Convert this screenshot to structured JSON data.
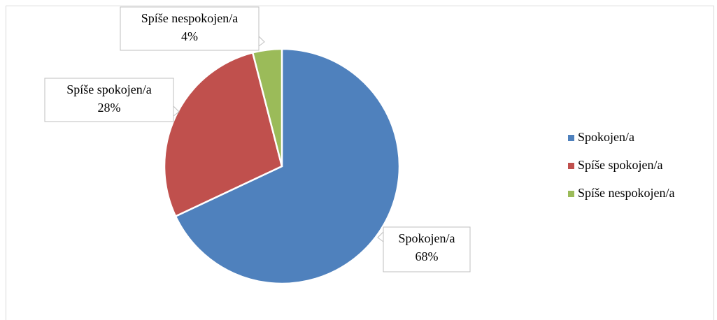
{
  "chart_data": {
    "type": "pie",
    "categories": [
      "Spokojen/a",
      "Spíše spokojen/a",
      "Spíše nespokojen/a"
    ],
    "values": [
      68,
      28,
      4
    ],
    "value_labels": [
      "68%",
      "28%",
      "4%"
    ],
    "colors": [
      "#4f81bd",
      "#c0504d",
      "#9bbb59"
    ],
    "legend": "right"
  }
}
